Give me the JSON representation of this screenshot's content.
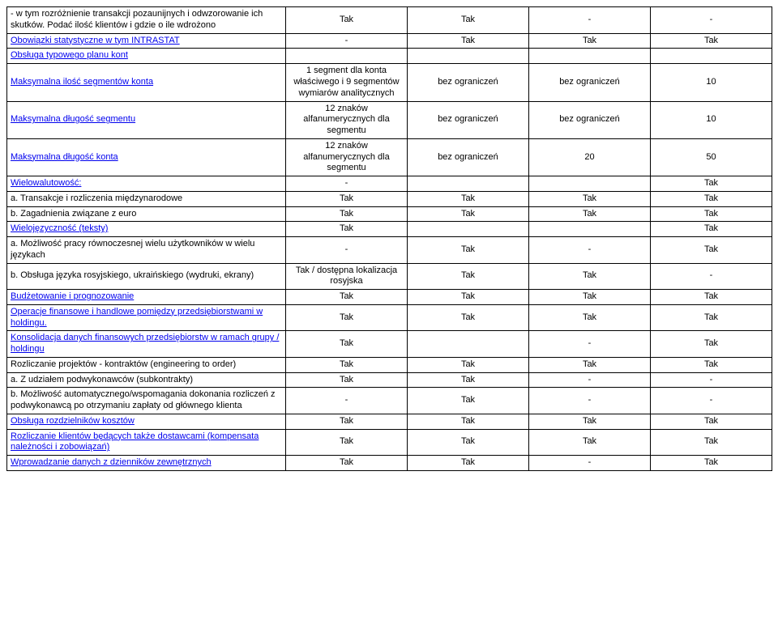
{
  "cells": {
    "r0c0": "- w tym rozróżnienie transakcji pozaunijnych i odwzorowanie ich skutków. Podać ilość klientów i gdzie o ile wdrożono",
    "r1c0": "Obowiązki statystyczne w tym INTRASTAT",
    "r2c0": "Obsługa typowego planu kont",
    "r3c0": "Maksymalna ilość segmentów konta",
    "r4c0": "Maksymalna długość segmentu",
    "r5c0": "Maksymalna długość konta",
    "r6c0": "Wielowalutowość:",
    "r7c0": " a. Transakcje i rozliczenia międzynarodowe",
    "r8c0": " b. Zagadnienia związane z euro",
    "r9c0": "Wielojęzyczność (teksty)",
    "r10c0": " a. Możliwość pracy równoczesnej wielu użytkowników w wielu językach",
    "r11c0": " b. Obsługa języka rosyjskiego, ukraińskiego (wydruki, ekrany)",
    "r12c0": "Budżetowanie i prognozowanie",
    "r13c0": "Operacje finansowe i handlowe pomiędzy przedsiębiorstwami w  holdingu.",
    "r14c0": "Konsolidacja danych finansowych przedsiębiorstw w ramach grupy / holdingu",
    "r15c0": "Rozliczanie projektów - kontraktów (engineering to order)",
    "r16c0": " a. Z udziałem podwykonawców (subkontrakty)",
    "r17c0": " b. Możliwość automatycznego/wspomagania dokonania rozliczeń z podwykonawcą po otrzymaniu zapłaty od głównego klienta",
    "r18c0": "Obsługa rozdzielników kosztów",
    "r19c0": "Rozliczanie klientów będących także dostawcami (kompensata należności i zobowiązań)",
    "r20c0": "Wprowadzanie danych z dzienników zewnętrznych",
    "r3c1": "1 segment dla konta właściwego i 9 segmentów wymiarów analitycznych",
    "r4c1": "12 znaków alfanumerycznych dla segmentu",
    "r5c1": "12 znaków alfanumerycznych dla segmentu",
    "r11c1": "Tak / dostępna lokalizacja rosyjska",
    "Tak": "Tak",
    "bez": "bez ograniczeń",
    "dash": "-",
    "n10": "10",
    "n20": "20",
    "n50": "50"
  }
}
